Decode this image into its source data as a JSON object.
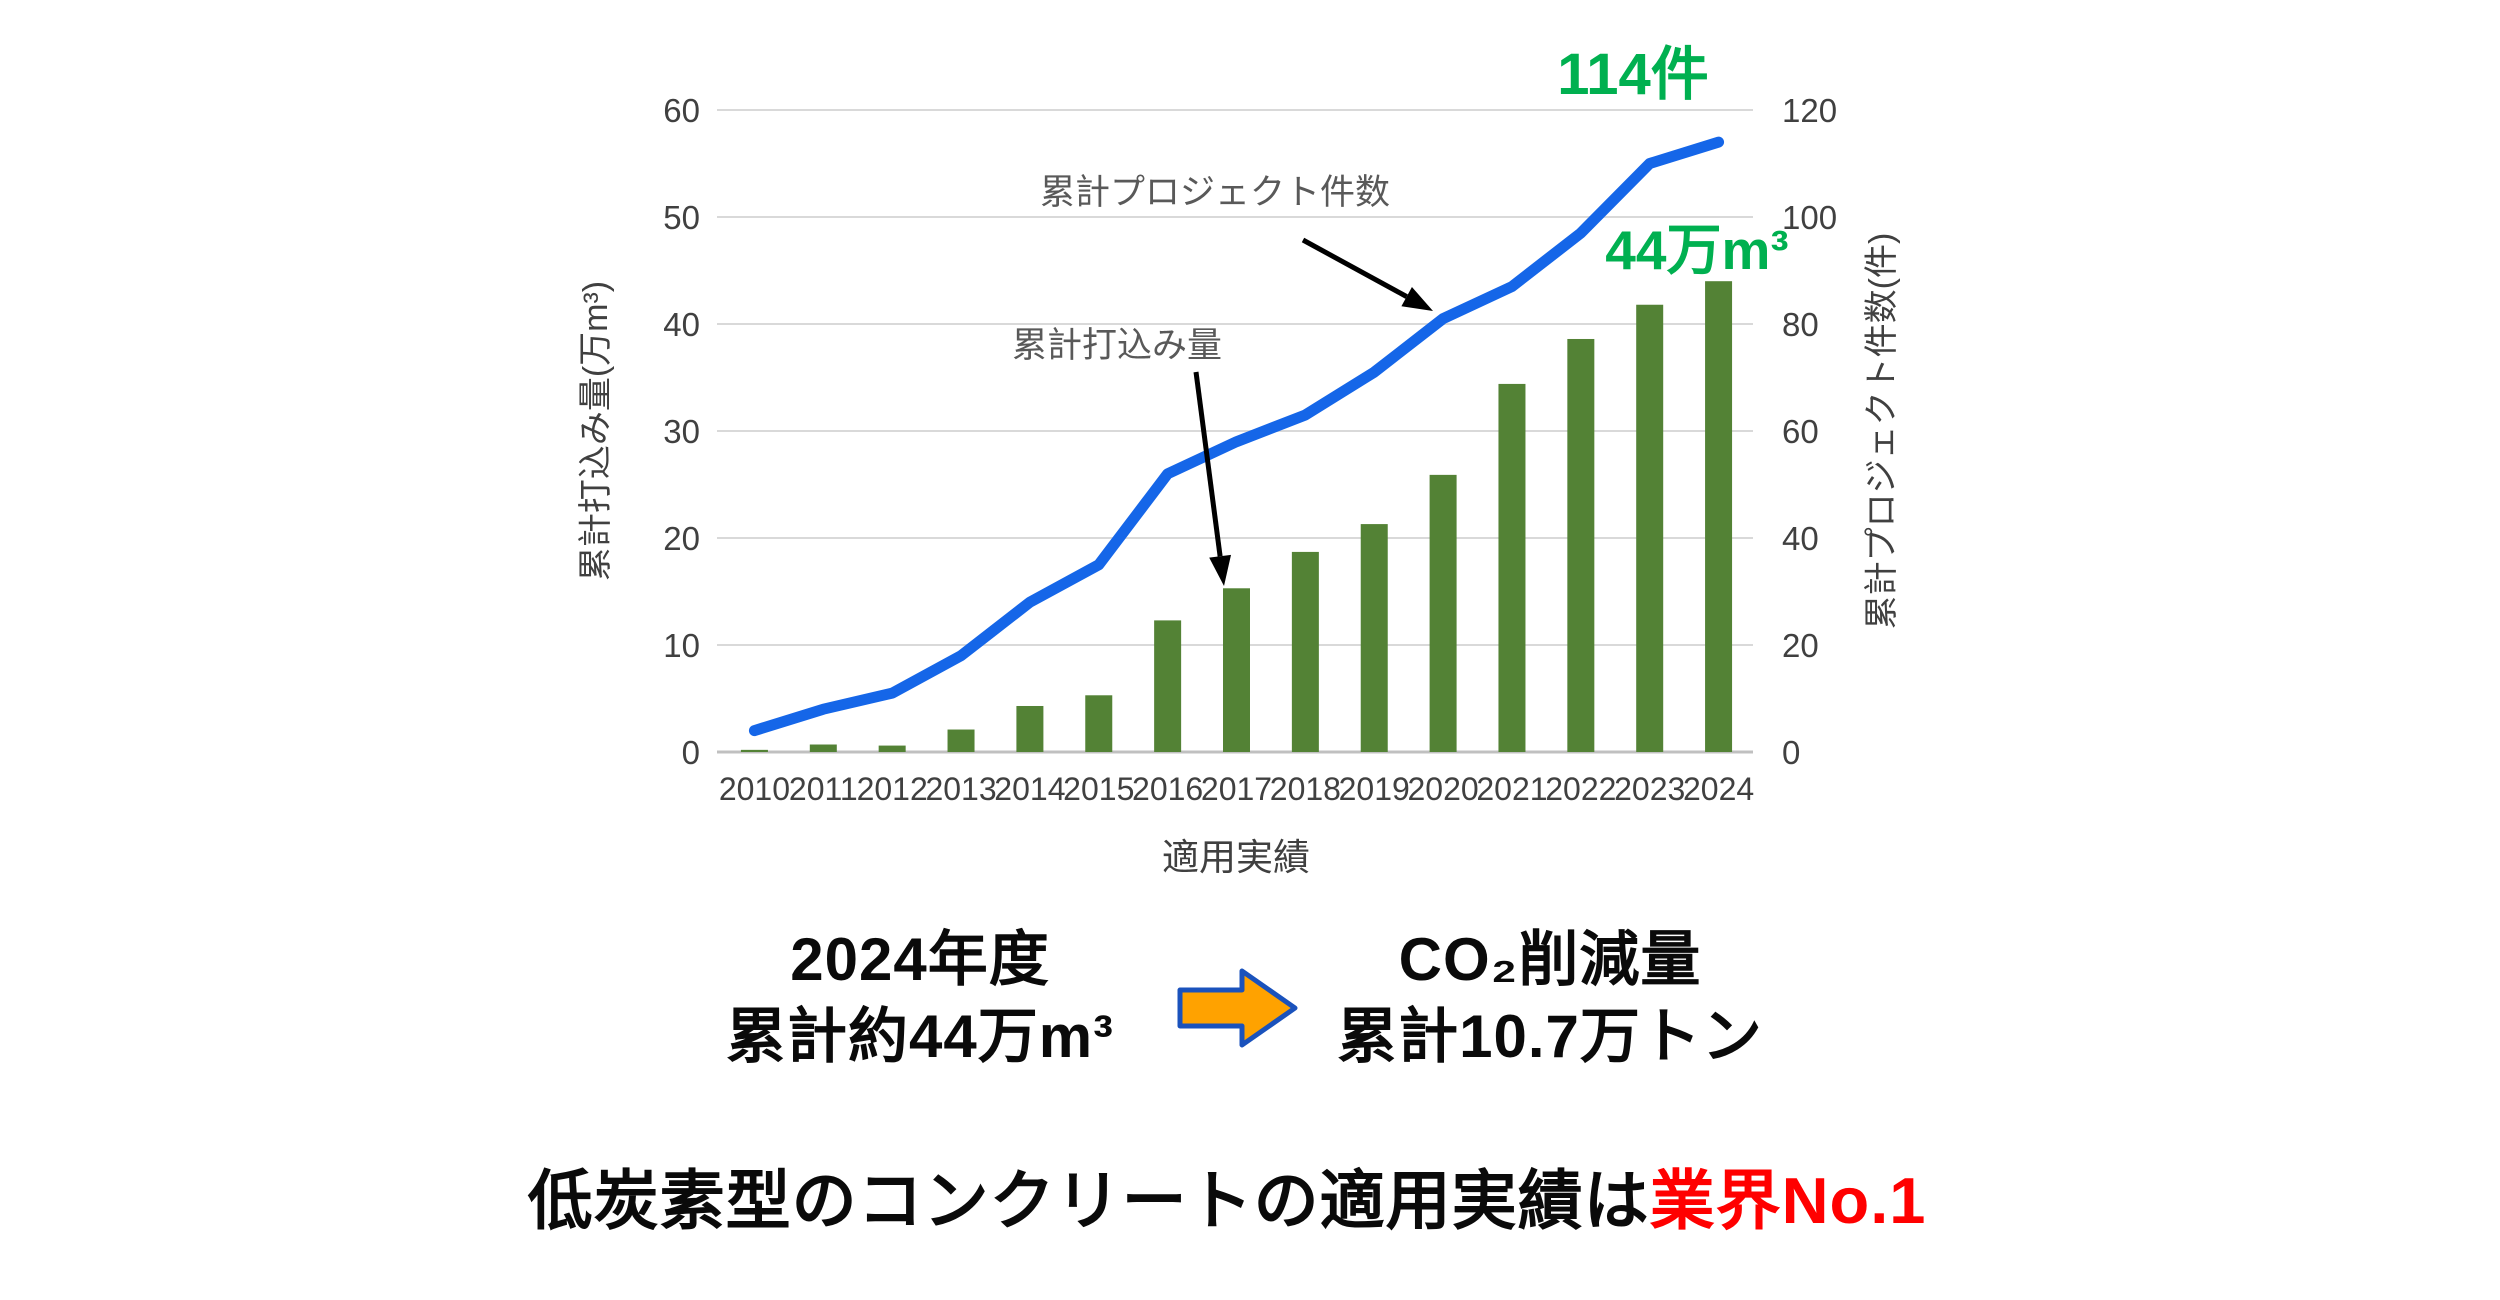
{
  "chart_data": {
    "type": "combo",
    "categories": [
      "2010",
      "2011",
      "2012",
      "2013",
      "2014",
      "2015",
      "2016",
      "2017",
      "2018",
      "2019",
      "2020",
      "2021",
      "2022",
      "2023",
      "2024"
    ],
    "series": [
      {
        "name": "累計打込み量",
        "type": "bar",
        "axis": "left",
        "values": [
          0.2,
          0.7,
          0.6,
          2.1,
          4.3,
          5.3,
          12.3,
          15.3,
          18.7,
          21.3,
          25.9,
          34.4,
          38.6,
          41.8,
          44
        ],
        "color": "#538235"
      },
      {
        "name": "累計プロジェクト件数",
        "type": "line",
        "axis": "right",
        "values": [
          4,
          8,
          11,
          18,
          28,
          35,
          52,
          58,
          63,
          71,
          81,
          87,
          97,
          110,
          114
        ],
        "color": "#1566e8"
      }
    ],
    "left_axis": {
      "title": "累計打込み量(万m³)",
      "min": 0,
      "max": 60,
      "step": 10
    },
    "right_axis": {
      "title": "累計プロジェクト件数(件)",
      "min": 0,
      "max": 120,
      "step": 20
    },
    "xlabel": "適用実績",
    "grid": true,
    "legend_position": "none",
    "annotations": {
      "line_peak": "114件",
      "bar_peak": "44万m³",
      "line_label": "累計プロジェクト件数",
      "bar_label": "累計打込み量",
      "accent_color": "#00b050",
      "label_color": "#595959",
      "tick_color": "#404040",
      "grid_color": "#d9d9d9",
      "baseline_color": "#c0c0c0",
      "arrow_color": "#000000"
    }
  },
  "callout": {
    "left": {
      "line1": "2024年度",
      "line2": "累計約44万m³"
    },
    "arrow": {
      "fill": "#ffa200",
      "stroke": "#1a52bc"
    },
    "right": {
      "line1": "CO₂削減量",
      "line2": "累計10.7万トン"
    }
  },
  "footer": {
    "text_black": "低炭素型のコンクリートの適用実績は",
    "text_red": "業界No.1",
    "red_color": "#ff0000"
  }
}
